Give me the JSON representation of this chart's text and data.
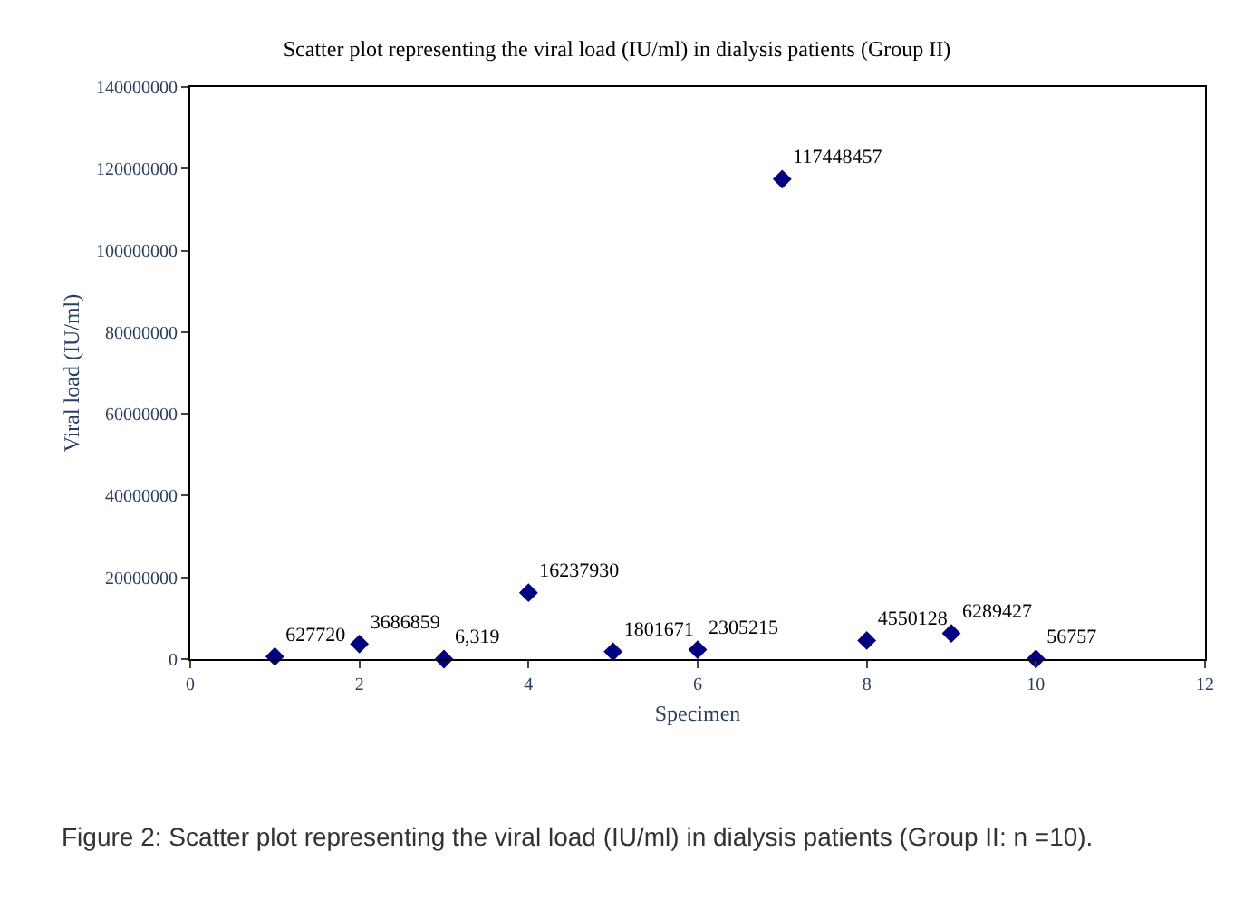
{
  "chart_data": {
    "type": "scatter",
    "title": "Scatter plot representing the viral load (IU/ml) in dialysis patients (Group II)",
    "xlabel": "Specimen",
    "ylabel": "Viral load (IU/ml)",
    "x": [
      1,
      2,
      3,
      4,
      5,
      6,
      7,
      8,
      9,
      10
    ],
    "values": [
      627720,
      3686859,
      6319,
      16237930,
      1801671,
      2305215,
      117448457,
      4550128,
      6289427,
      56757
    ],
    "value_labels": [
      "627720",
      "3686859",
      "6,319",
      "16237930",
      "1801671",
      "2305215",
      "117448457",
      "4550128",
      "6289427",
      "56757"
    ],
    "color": "#000080",
    "marker": "diamond",
    "xlim": [
      0,
      12
    ],
    "xticks": [
      0,
      2,
      4,
      6,
      8,
      10,
      12
    ],
    "ylim": [
      0,
      140000000
    ],
    "yticks": [
      0,
      20000000,
      40000000,
      60000000,
      80000000,
      100000000,
      120000000,
      140000000
    ],
    "grid": false,
    "annotations": [
      "Figure 2: Scatter plot representing the viral load (IU/ml) in dialysis patients (Group II: n =10)."
    ]
  }
}
